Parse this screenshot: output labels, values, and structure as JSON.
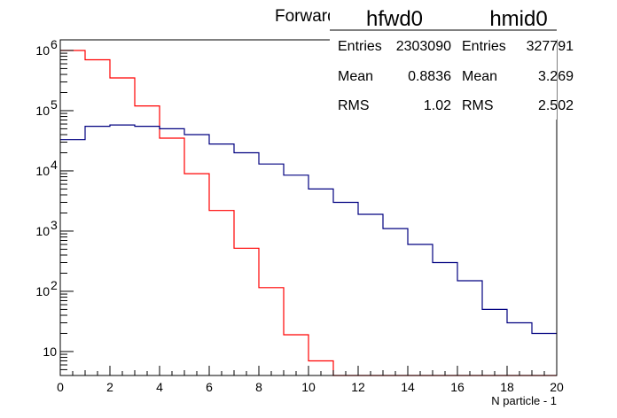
{
  "chart_data": {
    "type": "line",
    "title": "Forward",
    "xlabel": "N particle - 1",
    "ylabel": "",
    "xlim": [
      0,
      20
    ],
    "ylim": [
      4,
      1500000
    ],
    "y_scale": "log",
    "x_ticks": [
      0,
      2,
      4,
      6,
      8,
      10,
      12,
      14,
      16,
      18,
      20
    ],
    "y_ticks": [
      {
        "value": 10,
        "label": "10"
      },
      {
        "value": 100,
        "label": "10",
        "exp": "2"
      },
      {
        "value": 1000,
        "label": "10",
        "exp": "3"
      },
      {
        "value": 10000,
        "label": "10",
        "exp": "4"
      },
      {
        "value": 100000,
        "label": "10",
        "exp": "5"
      },
      {
        "value": 1000000,
        "label": "10",
        "exp": "6"
      }
    ],
    "series": [
      {
        "name": "hfwd0",
        "color": "#ff0000",
        "bin_edges": [
          0,
          1,
          2,
          3,
          4,
          5,
          6,
          7,
          8,
          9,
          10,
          11,
          12,
          13,
          14,
          15,
          16,
          17,
          18,
          19,
          20
        ],
        "values": [
          1000000,
          700000,
          350000,
          120000,
          35000,
          9000,
          2200,
          520,
          115,
          19,
          7,
          0,
          0,
          0,
          0,
          0,
          0,
          0,
          0,
          0
        ],
        "stats": {
          "entries": "2303090",
          "mean": "0.8836",
          "rms": "1.02"
        }
      },
      {
        "name": "hmid0",
        "color": "#000080",
        "bin_edges": [
          0,
          1,
          2,
          3,
          4,
          5,
          6,
          7,
          8,
          9,
          10,
          11,
          12,
          13,
          14,
          15,
          16,
          17,
          18,
          19,
          20
        ],
        "values": [
          33000,
          55000,
          58000,
          55000,
          50000,
          40000,
          28000,
          20000,
          13000,
          8500,
          5000,
          3000,
          1900,
          1100,
          600,
          300,
          150,
          50,
          30,
          20
        ],
        "stats": {
          "entries": "327791",
          "mean": "3.269",
          "rms": "2.502"
        }
      }
    ]
  },
  "labels": {
    "entries": "Entries",
    "mean": "Mean",
    "rms": "RMS"
  }
}
